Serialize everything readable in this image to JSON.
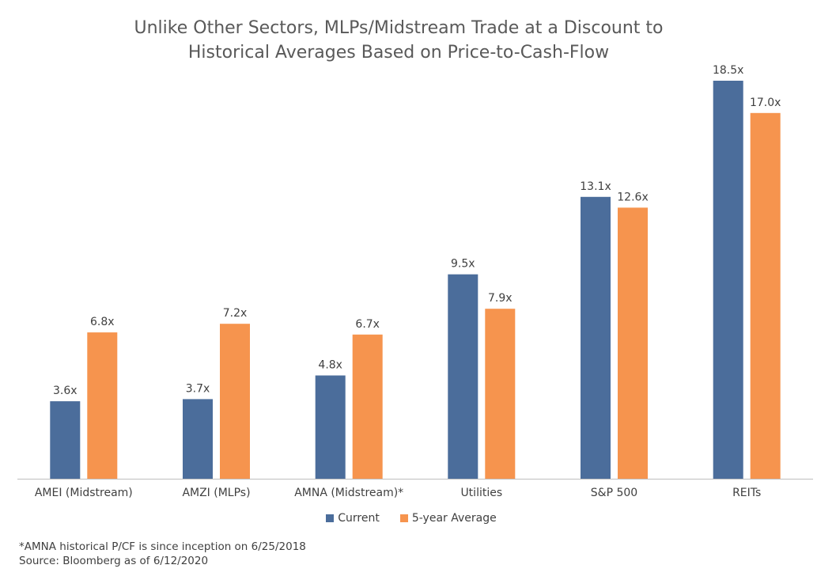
{
  "chart_data": {
    "type": "bar",
    "title_lines": [
      "Unlike Other Sectors, MLPs/Midstream Trade at a Discount to",
      "Historical Averages Based on Price-to-Cash-Flow"
    ],
    "categories": [
      "AMEI (Midstream)",
      "AMZI (MLPs)",
      "AMNA (Midstream)*",
      "Utilities",
      "S&P 500",
      "REITs"
    ],
    "series": [
      {
        "name": "Current",
        "color": "#4B6D9B",
        "values": [
          3.6,
          3.7,
          4.8,
          9.5,
          13.1,
          18.5
        ],
        "labels": [
          "3.6x",
          "3.7x",
          "4.8x",
          "9.5x",
          "13.1x",
          "18.5x"
        ]
      },
      {
        "name": "5-year Average",
        "color": "#F6944E",
        "values": [
          6.8,
          7.2,
          6.7,
          7.9,
          12.6,
          17.0
        ],
        "labels": [
          "6.8x",
          "7.2x",
          "6.7x",
          "7.9x",
          "12.6x",
          "17.0x"
        ]
      }
    ],
    "ylim": [
      0,
      18.5
    ],
    "xlabel": "",
    "ylabel": "",
    "grid": false,
    "legend_position": "bottom"
  },
  "footnotes": [
    "*AMNA historical P/CF is since inception on 6/25/2018",
    "Source: Bloomberg as of 6/12/2020"
  ]
}
